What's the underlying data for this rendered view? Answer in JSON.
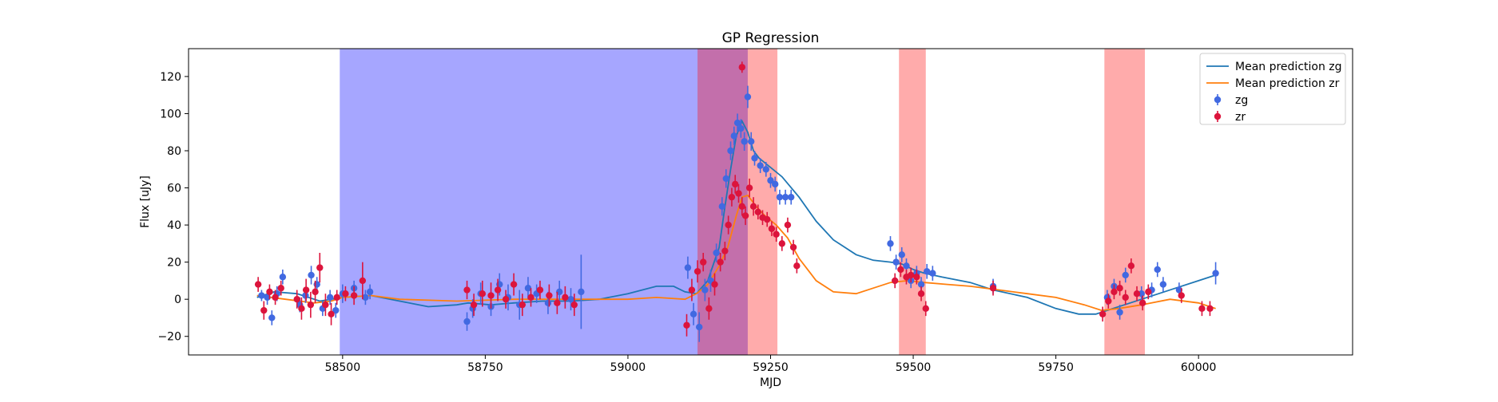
{
  "chart_data": {
    "type": "scatter",
    "title": "GP Regression",
    "xlabel": "MJD",
    "ylabel": "Flux [uJy]",
    "xlim": [
      58230,
      60270
    ],
    "ylim": [
      -30,
      135
    ],
    "x_ticks": [
      58500,
      58750,
      59000,
      59250,
      59500,
      59750,
      60000
    ],
    "x_tick_labels": [
      "58500",
      "58750",
      "59000",
      "59250",
      "59500",
      "59750",
      "60000"
    ],
    "y_ticks": [
      -20,
      0,
      20,
      40,
      60,
      80,
      100,
      120
    ],
    "y_tick_labels": [
      "−20",
      "0",
      "20",
      "40",
      "60",
      "80",
      "100",
      "120"
    ],
    "grid": false,
    "legend": {
      "placement": "top-right",
      "entries": [
        "Mean prediction zg",
        "Mean prediction zr",
        "zg",
        "zr"
      ]
    },
    "shaded_regions": [
      {
        "x0": 58495,
        "x1": 59210,
        "color": "#0000ff",
        "opacity": 0.35
      },
      {
        "x0": 59122,
        "x1": 59262,
        "color": "#ff0000",
        "opacity": 0.33
      },
      {
        "x0": 59475,
        "x1": 59522,
        "color": "#ff0000",
        "opacity": 0.33
      },
      {
        "x0": 59835,
        "x1": 59906,
        "color": "#ff0000",
        "opacity": 0.33
      }
    ],
    "series": [
      {
        "name": "Mean prediction zg",
        "kind": "line",
        "color": "#1f77b4",
        "x": [
          58350,
          58380,
          58420,
          58460,
          58500,
          58550,
          58600,
          58650,
          58700,
          58720,
          58760,
          58800,
          58850,
          58900,
          58950,
          59000,
          59050,
          59080,
          59100,
          59120,
          59140,
          59160,
          59170,
          59180,
          59190,
          59200,
          59210,
          59220,
          59230,
          59250,
          59270,
          59300,
          59330,
          59360,
          59400,
          59430,
          59460,
          59480,
          59500,
          59520,
          59550,
          59600,
          59640,
          59700,
          59750,
          59790,
          59820,
          59840,
          59870,
          59900,
          59930,
          59960,
          60000,
          60030
        ],
        "y": [
          1,
          4,
          3,
          -1,
          1,
          2,
          -1,
          -4,
          -3,
          -2,
          -3,
          -2,
          -1,
          -1,
          0,
          3,
          7,
          7,
          4,
          3,
          10,
          28,
          50,
          70,
          88,
          96,
          90,
          80,
          76,
          71,
          66,
          55,
          42,
          32,
          24,
          21,
          20,
          19,
          16,
          14,
          12,
          9,
          5,
          1,
          -5,
          -8,
          -8,
          -6,
          -3,
          0,
          3,
          6,
          10,
          13
        ]
      },
      {
        "name": "Mean prediction zr",
        "kind": "line",
        "color": "#ff7f0e",
        "x": [
          58350,
          58400,
          58450,
          58480,
          58500,
          58550,
          58600,
          58700,
          58800,
          58900,
          59000,
          59050,
          59100,
          59120,
          59140,
          59160,
          59175,
          59190,
          59200,
          59210,
          59225,
          59240,
          59260,
          59280,
          59300,
          59330,
          59360,
          59400,
          59430,
          59460,
          59490,
          59520,
          59560,
          59600,
          59650,
          59700,
          59750,
          59800,
          59830,
          59860,
          59900,
          59950,
          60000,
          60030
        ],
        "y": [
          2,
          0,
          -2,
          -1,
          1,
          2,
          0,
          -1,
          0,
          0,
          0,
          1,
          0,
          3,
          8,
          18,
          28,
          45,
          55,
          56,
          50,
          45,
          40,
          33,
          22,
          10,
          4,
          3,
          6,
          9,
          10,
          9,
          8,
          7,
          5,
          3,
          1,
          -3,
          -6,
          -5,
          -3,
          0,
          -2,
          -5
        ]
      },
      {
        "name": "zg",
        "kind": "points",
        "color": "#4169e1",
        "x": [
          58358,
          58368,
          58376,
          58385,
          58395,
          58425,
          58435,
          58445,
          58455,
          58465,
          58478,
          58488,
          58500,
          58520,
          58540,
          58548,
          58718,
          58728,
          58742,
          58760,
          58775,
          58790,
          58810,
          58825,
          58840,
          58860,
          58880,
          58900,
          58918,
          59105,
          59115,
          59125,
          59135,
          59145,
          59155,
          59165,
          59172,
          59180,
          59186,
          59192,
          59198,
          59204,
          59210,
          59216,
          59222,
          59232,
          59242,
          59250,
          59258,
          59266,
          59276,
          59286,
          59460,
          59470,
          59480,
          59488,
          59496,
          59506,
          59514,
          59524,
          59534,
          59640,
          59840,
          59852,
          59862,
          59872,
          59900,
          59918,
          59928,
          59938,
          59966,
          60030
        ],
        "y": [
          2,
          1,
          -10,
          3,
          12,
          -3,
          2,
          13,
          8,
          -5,
          1,
          -6,
          3,
          6,
          1,
          4,
          -12,
          -5,
          3,
          -4,
          8,
          1,
          -3,
          6,
          3,
          -2,
          4,
          0,
          4,
          17,
          -8,
          -15,
          5,
          10,
          25,
          50,
          65,
          80,
          88,
          95,
          92,
          85,
          109,
          85,
          76,
          72,
          70,
          64,
          62,
          55,
          55,
          55,
          30,
          20,
          24,
          18,
          10,
          14,
          8,
          15,
          14,
          7,
          1,
          7,
          -7,
          13,
          3,
          5,
          16,
          8,
          5,
          14
        ],
        "err": [
          3,
          4,
          4,
          4,
          4,
          4,
          4,
          5,
          4,
          4,
          4,
          4,
          5,
          4,
          4,
          4,
          5,
          5,
          6,
          5,
          6,
          7,
          8,
          6,
          5,
          6,
          6,
          6,
          20,
          6,
          6,
          8,
          6,
          6,
          5,
          5,
          5,
          5,
          5,
          5,
          5,
          5,
          6,
          5,
          4,
          4,
          4,
          4,
          4,
          4,
          4,
          4,
          4,
          4,
          4,
          4,
          4,
          4,
          4,
          4,
          4,
          4,
          4,
          4,
          4,
          4,
          4,
          4,
          4,
          4,
          4,
          6
        ]
      },
      {
        "name": "zr",
        "kind": "points",
        "color": "#dc143c",
        "x": [
          58352,
          58362,
          58372,
          58382,
          58392,
          58420,
          58428,
          58436,
          58444,
          58452,
          58460,
          58470,
          58480,
          58490,
          58505,
          58520,
          58535,
          58718,
          58730,
          58745,
          58760,
          58772,
          58786,
          58800,
          58815,
          58830,
          58846,
          58862,
          58876,
          58890,
          58906,
          59103,
          59112,
          59122,
          59132,
          59142,
          59152,
          59162,
          59170,
          59176,
          59182,
          59188,
          59194,
          59200,
          59206,
          59213,
          59220,
          59228,
          59236,
          59244,
          59252,
          59260,
          59270,
          59280,
          59290,
          59296,
          59468,
          59478,
          59488,
          59496,
          59506,
          59514,
          59522,
          59640,
          59832,
          59842,
          59852,
          59862,
          59872,
          59882,
          59892,
          59902,
          59912,
          59970,
          60006,
          60020
        ],
        "y": [
          8,
          -6,
          4,
          1,
          6,
          0,
          -5,
          5,
          -3,
          4,
          17,
          -3,
          -8,
          1,
          3,
          2,
          10,
          5,
          -3,
          3,
          2,
          5,
          0,
          8,
          -3,
          1,
          5,
          2,
          -2,
          1,
          -3,
          -14,
          5,
          15,
          20,
          -5,
          8,
          20,
          26,
          40,
          55,
          62,
          57,
          50,
          45,
          60,
          50,
          47,
          44,
          43,
          38,
          35,
          30,
          40,
          28,
          18,
          10,
          16,
          12,
          13,
          12,
          3,
          -5,
          6,
          -8,
          -1,
          4,
          6,
          1,
          18,
          3,
          -2,
          4,
          2,
          -5,
          -5
        ],
        "err": [
          4,
          5,
          4,
          4,
          4,
          5,
          6,
          6,
          7,
          6,
          8,
          6,
          6,
          4,
          4,
          5,
          10,
          5,
          6,
          7,
          7,
          6,
          5,
          6,
          6,
          5,
          5,
          6,
          6,
          6,
          6,
          6,
          6,
          6,
          5,
          6,
          6,
          5,
          5,
          5,
          5,
          5,
          5,
          5,
          5,
          5,
          5,
          4,
          4,
          4,
          4,
          4,
          4,
          4,
          4,
          4,
          4,
          4,
          4,
          4,
          4,
          4,
          4,
          4,
          4,
          4,
          4,
          4,
          4,
          4,
          4,
          4,
          4,
          4,
          4,
          4
        ],
        "extra_points": [
          {
            "x": 59200,
            "y": 125,
            "err": 3
          }
        ]
      }
    ]
  }
}
